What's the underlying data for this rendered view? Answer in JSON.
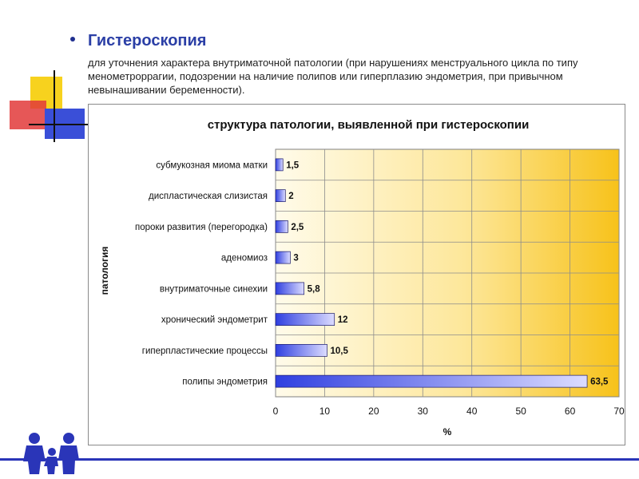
{
  "slide": {
    "heading": "Гистероскопия",
    "description": "для уточнения характера внутриматочной патологии (при нарушениях менструального цикла по типу менометроррагии, подозрении на наличие полипов или гиперплазию эндометрия, при привычном невынашивании беременности)."
  },
  "colors": {
    "accent": "#2b3fa6",
    "bar_blue": "#2f3fe0",
    "bar_light": "#d8d8ff",
    "plot_gradient_start": "#fffbe8",
    "plot_gradient_end": "#f7c21a",
    "deco_yellow": "#f7d21e",
    "deco_red": "#e23a3a",
    "deco_blue": "#3a4fd8"
  },
  "chart_data": {
    "type": "bar",
    "orientation": "horizontal",
    "title": "структура патологии, выявленной при гистероскопии",
    "xlabel": "%",
    "ylabel": "патология",
    "categories": [
      "субмукозная миома матки",
      "диспластическая слизистая",
      "пороки развития (перегородка)",
      "аденомиоз",
      "внутриматочные синехии",
      "хронический эндометрит",
      "гиперпластические процессы",
      "полипы эндометрия"
    ],
    "values": [
      1.5,
      2,
      2.5,
      3,
      5.8,
      12,
      10.5,
      63.5
    ],
    "value_labels": [
      "1,5",
      "2",
      "2,5",
      "3",
      "5,8",
      "12",
      "10,5",
      "63,5"
    ],
    "xlim": [
      0,
      70
    ],
    "xticks": [
      0,
      10,
      20,
      30,
      40,
      50,
      60,
      70
    ],
    "grid": true
  }
}
